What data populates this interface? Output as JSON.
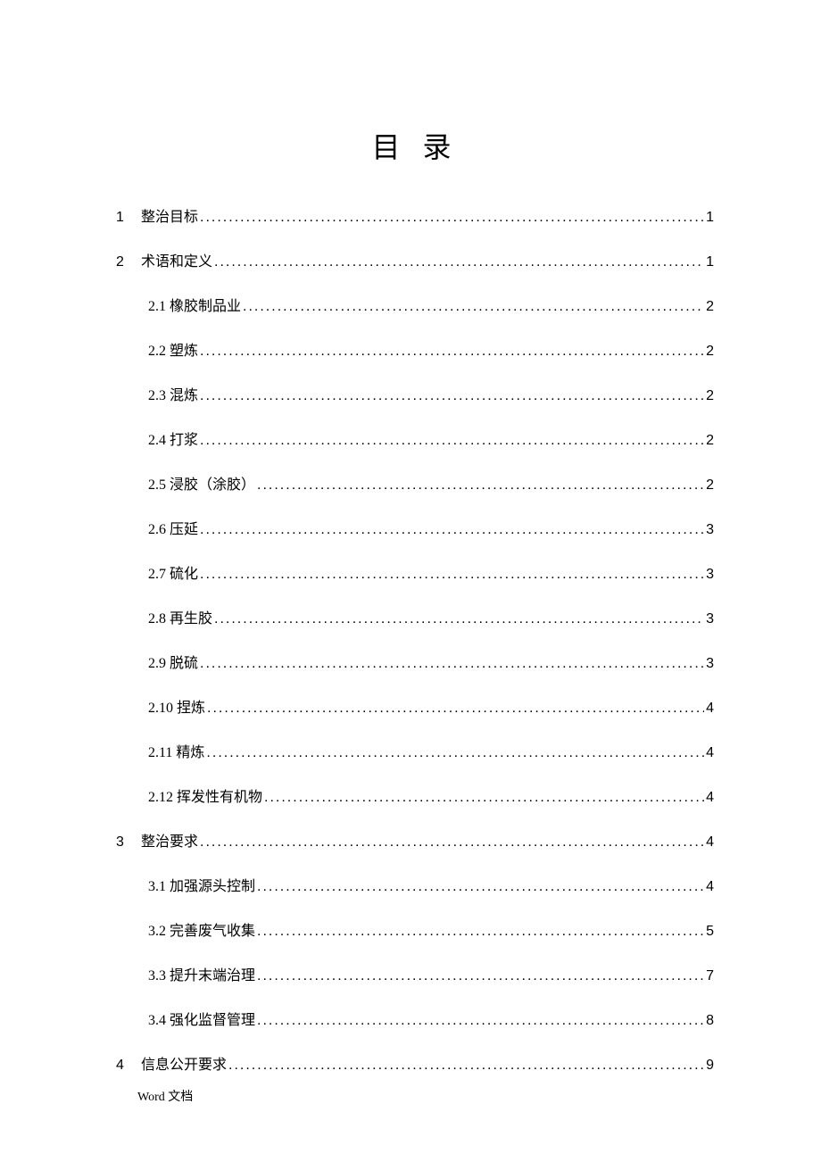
{
  "title": "目 录",
  "entries": [
    {
      "level": 1,
      "num": "1",
      "label": "整治目标",
      "page": "1"
    },
    {
      "level": 1,
      "num": "2",
      "label": "术语和定义",
      "page": "1"
    },
    {
      "level": 2,
      "num": "2.1",
      "label": "橡胶制品业",
      "page": "2"
    },
    {
      "level": 2,
      "num": "2.2",
      "label": "塑炼",
      "page": "2"
    },
    {
      "level": 2,
      "num": "2.3",
      "label": "混炼",
      "page": "2"
    },
    {
      "level": 2,
      "num": "2.4",
      "label": "打浆",
      "page": "2"
    },
    {
      "level": 2,
      "num": "2.5",
      "label": "浸胶（涂胶）",
      "page": "2"
    },
    {
      "level": 2,
      "num": "2.6",
      "label": "压延",
      "page": "3"
    },
    {
      "level": 2,
      "num": "2.7",
      "label": "硫化",
      "page": "3"
    },
    {
      "level": 2,
      "num": "2.8",
      "label": "再生胶",
      "page": "3"
    },
    {
      "level": 2,
      "num": "2.9",
      "label": "脱硫",
      "page": "3"
    },
    {
      "level": 2,
      "num": "2.10",
      "label": "捏炼",
      "page": "4"
    },
    {
      "level": 2,
      "num": "2.11",
      "label": "精炼",
      "page": "4"
    },
    {
      "level": 2,
      "num": "2.12",
      "label": "挥发性有机物",
      "page": "4"
    },
    {
      "level": 1,
      "num": "3",
      "label": "整治要求",
      "page": "4"
    },
    {
      "level": 2,
      "num": "3.1",
      "label": "加强源头控制",
      "page": "4"
    },
    {
      "level": 2,
      "num": "3.2",
      "label": "完善废气收集",
      "page": "5"
    },
    {
      "level": 2,
      "num": "3.3",
      "label": "提升末端治理",
      "page": "7"
    },
    {
      "level": 2,
      "num": "3.4",
      "label": "强化监督管理",
      "page": "8"
    },
    {
      "level": 1,
      "num": "4",
      "label": "信息公开要求",
      "page": "9"
    }
  ],
  "footer": "Word  文档"
}
